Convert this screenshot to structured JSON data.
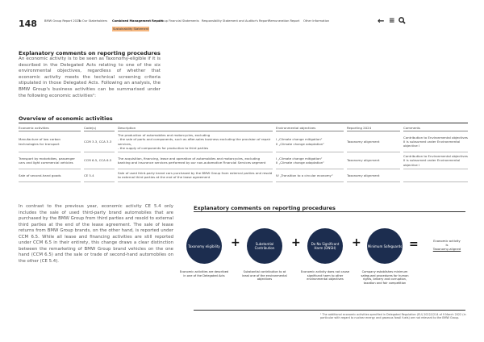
{
  "header": {
    "page_number": "148",
    "nav": [
      "BMW Group Report 2024",
      "To Our Stakeholders",
      "Combined Management Report",
      "Group Financial Statements",
      "Responsibility Statement and Auditor's Report",
      "Remuneration Report",
      "Other Information"
    ],
    "sub_nav": "Sustainability Statement",
    "icons": [
      "back-arrow-icon",
      "menu-icon",
      "search-icon"
    ]
  },
  "intro": {
    "title": "Explanatory comments on reporting procedures",
    "text": "An economic activity is to be seen as Taxonomy-eligible if it is described in the Delegated Acts relating to one of the six environmental objectives, regardless of whether that economic activity meets the technical screening criteria stipulated in those Delegated Acts. Following an analysis, the BMW Group's business activities can be summarised under the following economic activities¹:"
  },
  "table": {
    "title": "Overview of economic activities",
    "headers": [
      "Economic activities",
      "Code(s)",
      "Description",
      "Environmental objectives",
      "Reporting 2024",
      "Comments"
    ],
    "rows": [
      {
        "activity": "Manufacture of low carbon technologies for transport",
        "codes": "CCM 3.3, CCA 3.3",
        "description": "The production of automobiles and motorcycles, excluding\n- the sale of parts and components, such as after-sales business excluding the provision of repair services,\n- the supply of components for production to third parties",
        "objectives": "I „Climate change mitigation“\nII „Climate change adaptation“",
        "reporting": "Taxonomy alignment",
        "comments": "Contribution to Environmental objectives II is subsumed under Environmental objective I"
      },
      {
        "activity": "Transport by motorbikes, passenger cars and light commercial vehicles",
        "codes": "CCM 6.5, CCA 6.5",
        "description": "The acquisition, financing, lease and operation of automobiles and motorcycles, excluding banking and insurance services performed by our non-automotive Financial Services segment",
        "objectives": "I „Climate change mitigation“\nII „Climate change adaptation“",
        "reporting": "Taxonomy alignment",
        "comments": "Contribution to Environmental objectives II is subsumed under Environmental objective I"
      },
      {
        "activity": "Sale of second-hand goods",
        "codes": "CE 5.4",
        "description": "Sale of used third-party brand cars purchased by the BMW Group from external parties and resold to external third parties at the end of the lease agreement",
        "objectives": "IV „Transition to a circular economy“",
        "reporting": "Taxonomy alignment",
        "comments": ""
      }
    ]
  },
  "body_text": "In contrast to the previous year, economic activity CE 5.4 only includes the sale of used third-party brand automobiles that are purchased by the BMW Group from third parties and resold to external third parties at the end of the lease agreement. The sale of lease returns from BMW Group brands, on the other hand, is reported under CCM 6.5. While all lease and financing activities are still reported under CCM 6.5 in their entirety, this change draws a clear distinction between the remarketing of BMW Group brand vehicles on the one hand (CCM 6.5) and the sale or trade of second-hand automobiles on the other (CE 5.4).",
  "diagram": {
    "title": "Explanatory comments on reporting procedures",
    "steps": [
      {
        "label": "Taxonomy eligibility",
        "caption": "Economic activities are described in one of the Delegated Acts"
      },
      {
        "label": "Substantial Contribution",
        "caption": "Substantial contribution to at least one of the environmental objectives"
      },
      {
        "label": "Do No Significant Harm (DNSH)",
        "caption": "Economic activity does not cause significant harm to other environmental objectives"
      },
      {
        "label": "Minimum Safeguards",
        "caption": "Company establishes minimum safeguard procedures for human rights, bribery and corruption, taxation and fair competition"
      }
    ],
    "plus": "+",
    "equals": "=",
    "result_pre": "Economic activity is",
    "result_link": "Taxonomy-aligned",
    "circle_color": "#1c2d4f"
  },
  "footnote": "¹ The additional economic activities specified in Delegated Regulation (EU) 2022/1214 of 9 March 2022 (in particular with regard to nuclear energy and gaseous fossil fuels) are not relevant to the BMW Group."
}
